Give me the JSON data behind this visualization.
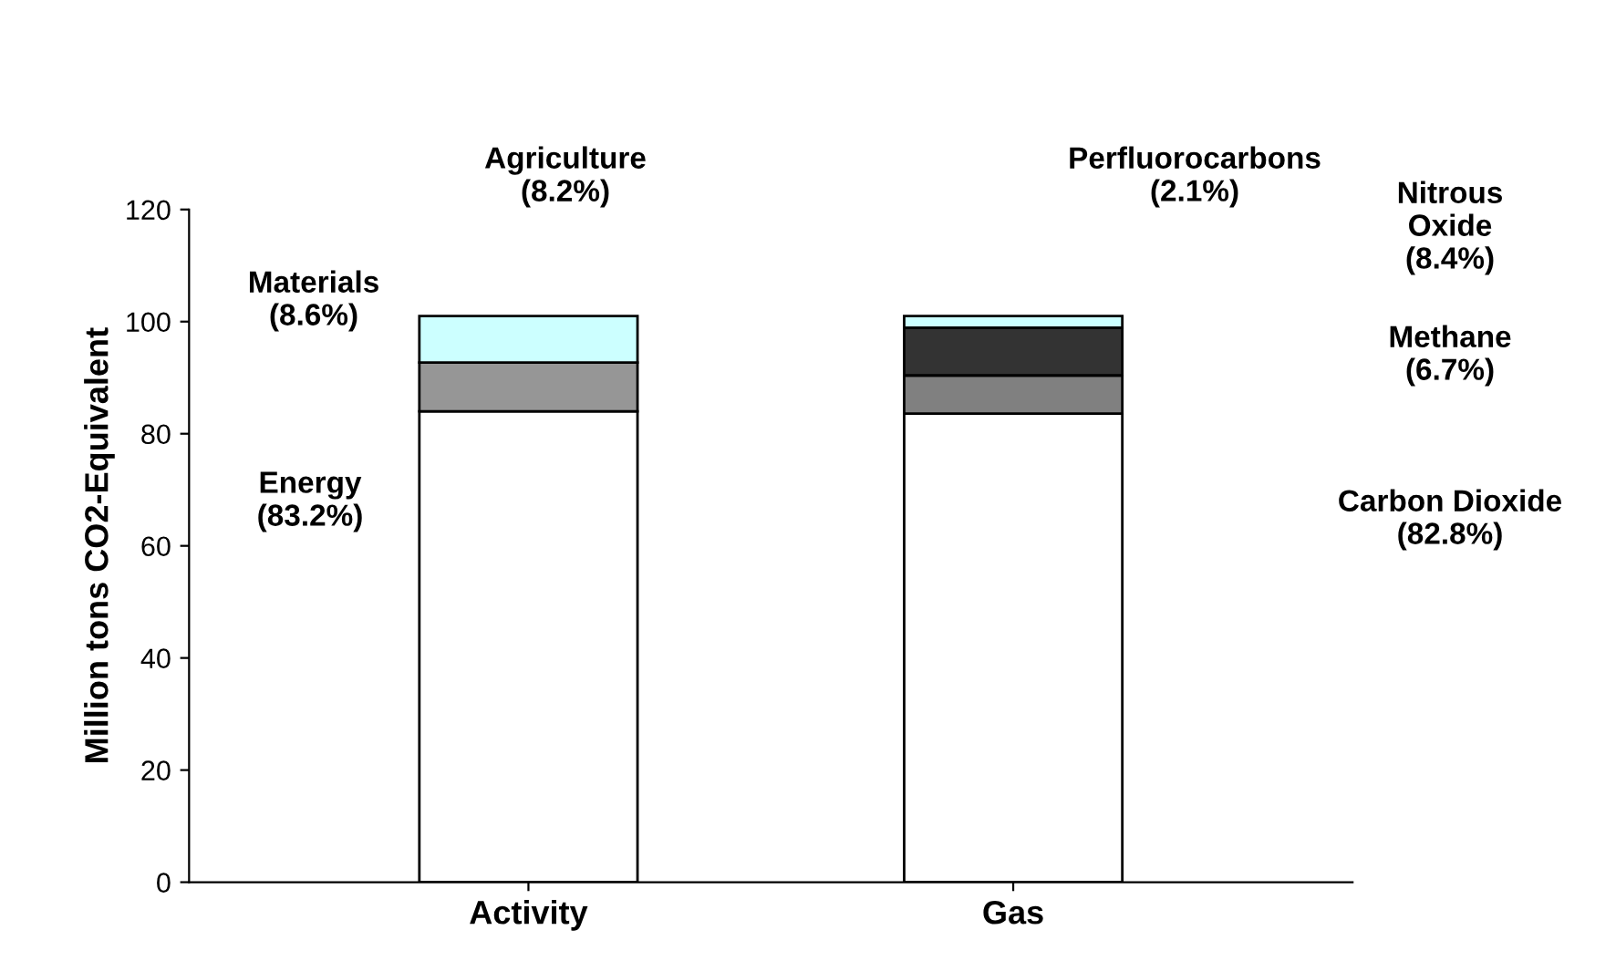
{
  "chart_data": {
    "type": "bar",
    "stacked": true,
    "categories": [
      "Activity",
      "Gas"
    ],
    "ylabel": "Million tons CO2-Equivalent",
    "ylim": [
      0,
      120
    ],
    "yticks": [
      0,
      20,
      40,
      60,
      80,
      100,
      120
    ],
    "grid": false,
    "legend": false,
    "series": [
      {
        "colors": [
          "#ffffff",
          "#ffffff"
        ],
        "values": [
          84.0,
          83.6
        ]
      },
      {
        "colors": [
          "#969696",
          "#808080"
        ],
        "values": [
          8.7,
          6.8
        ]
      },
      {
        "colors": [
          "#ccffff",
          "#333333"
        ],
        "values": [
          8.3,
          8.5
        ]
      },
      {
        "colors": [
          "#ccffff",
          "#ccffff"
        ],
        "values": [
          null,
          2.1
        ]
      }
    ],
    "annotations": [
      "Energy\n(83.2%)",
      "Materials\n(8.6%)",
      "Agriculture\n(8.2%)",
      "Carbon Dioxide\n(82.8%)",
      "Methane\n(6.7%)",
      "Nitrous\nOxide\n(8.4%)",
      "Perfluorocarbons\n(2.1%)"
    ]
  }
}
